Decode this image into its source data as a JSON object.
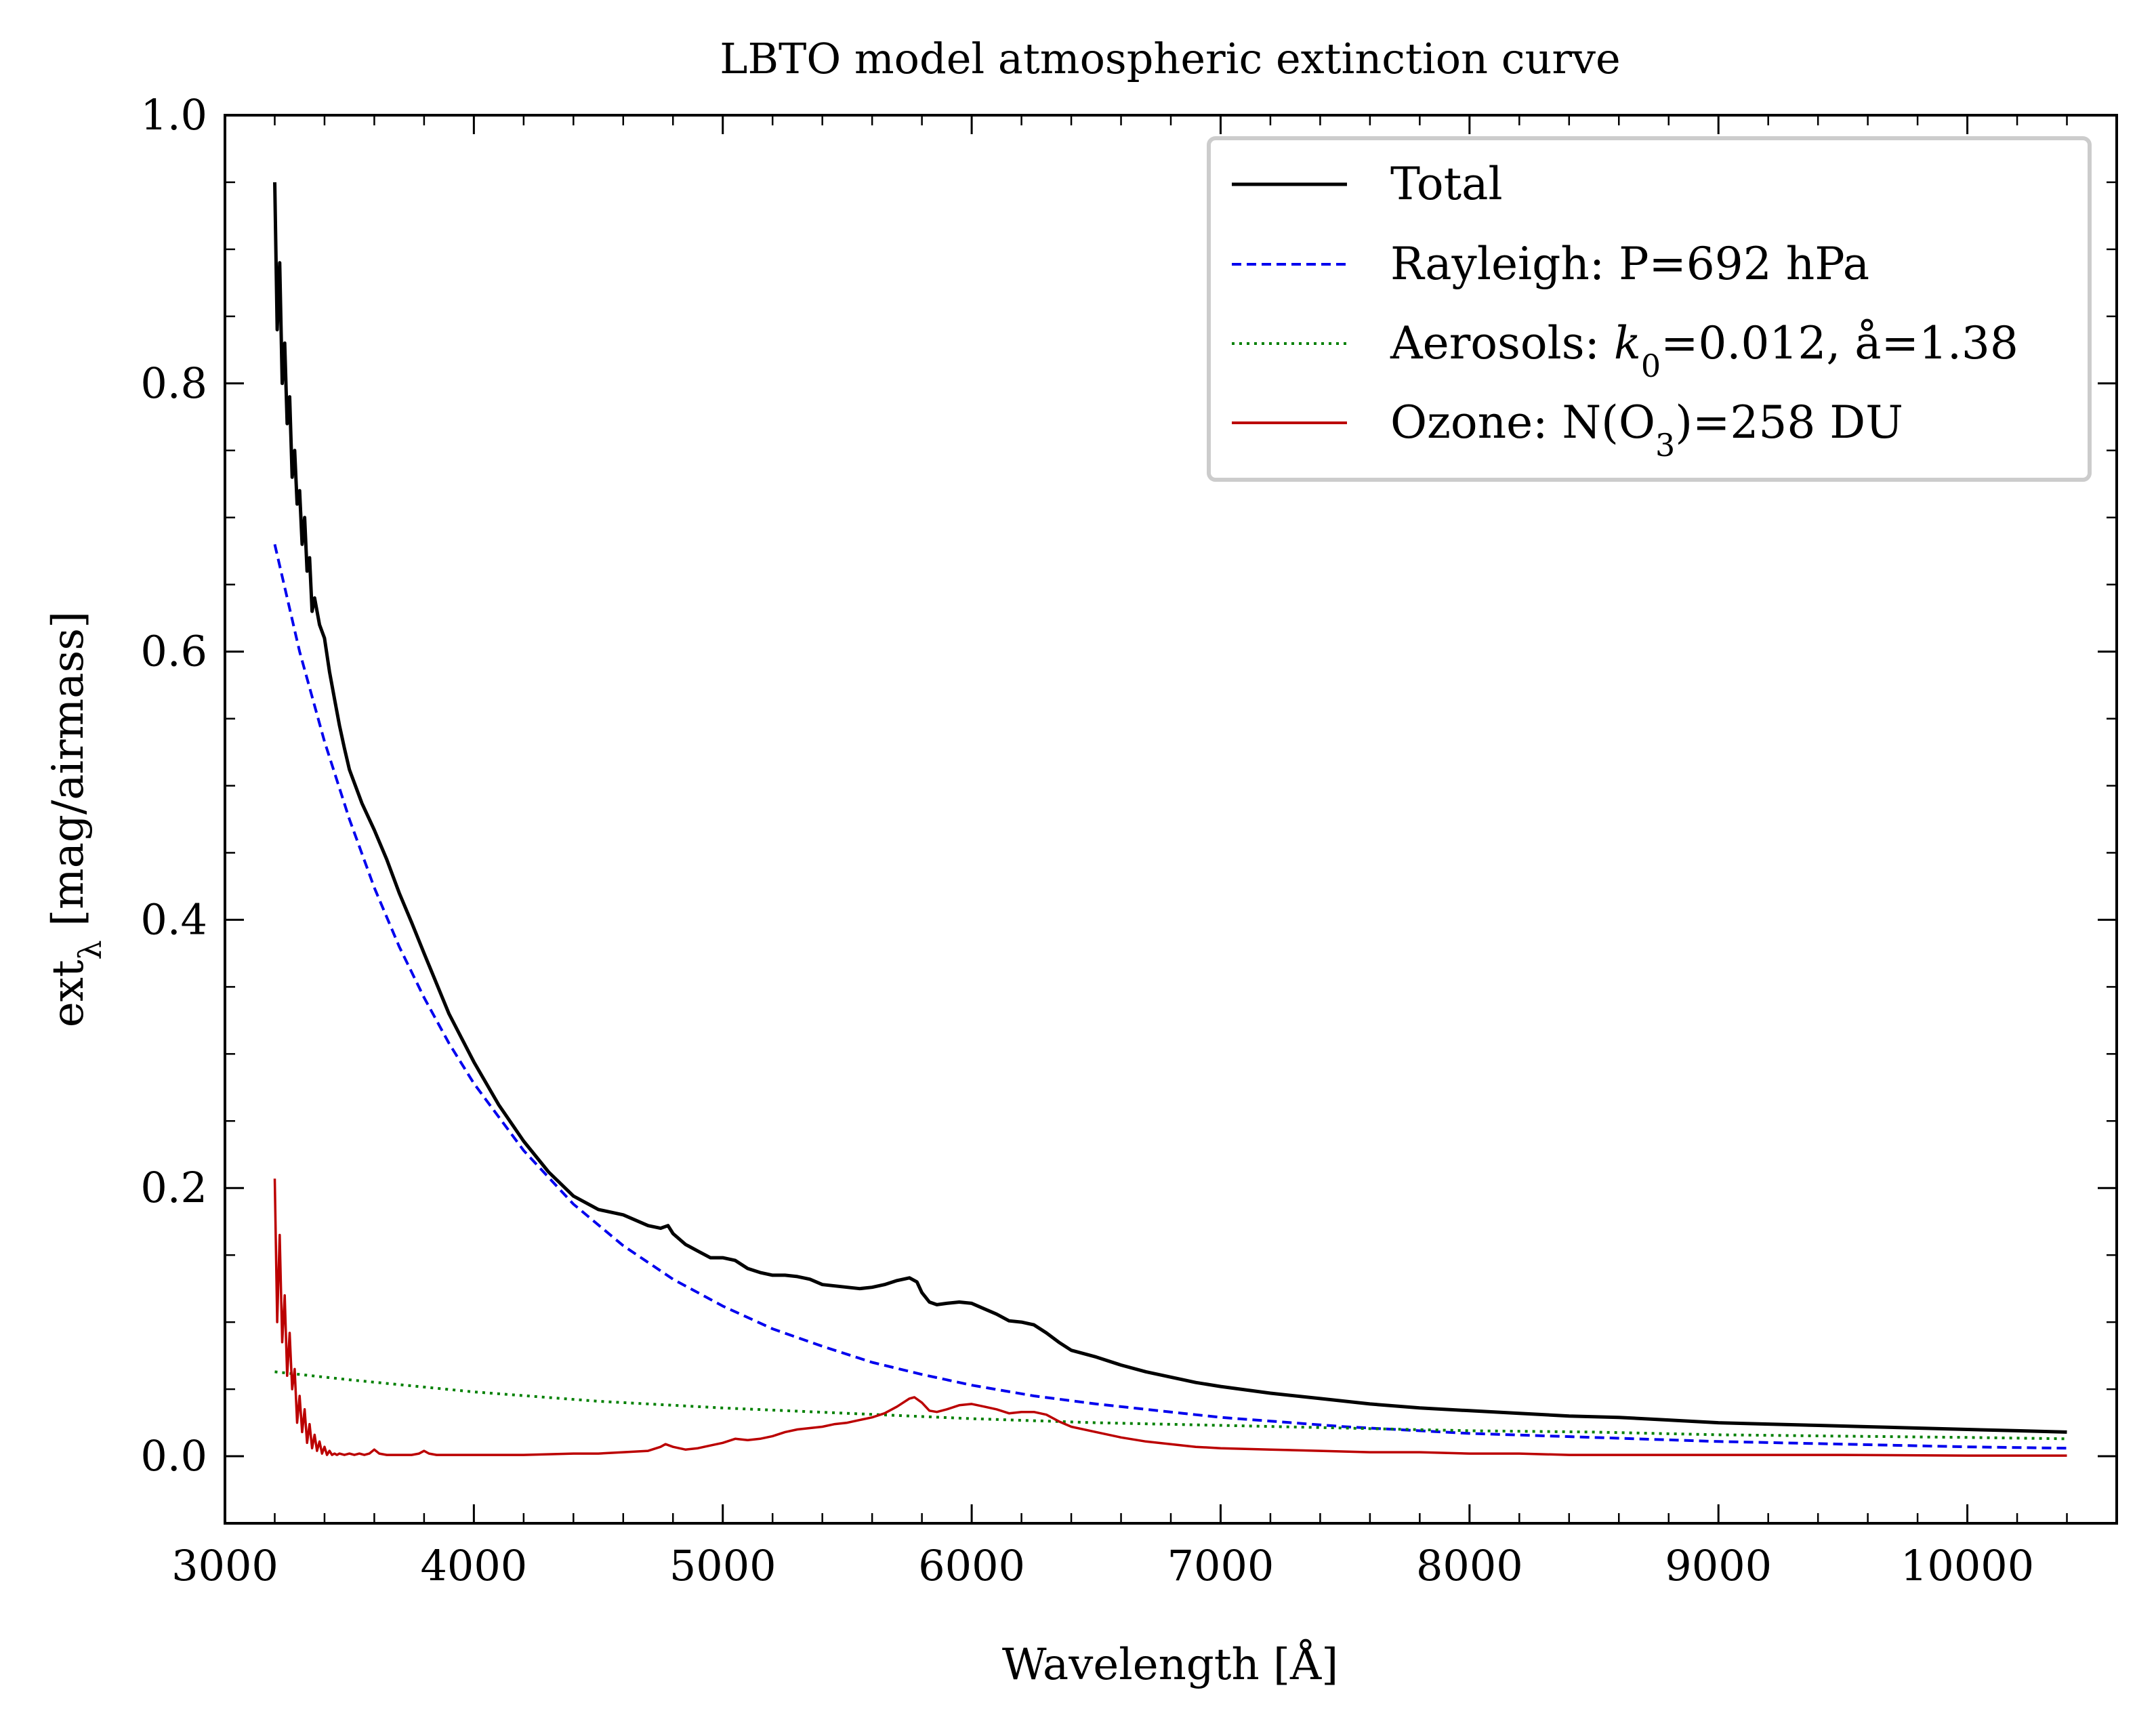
{
  "chart_data": {
    "type": "line",
    "title": "LBTO model atmospheric extinction curve",
    "xlabel": "Wavelength [Å]",
    "ylabel": "ext",
    "ylabel_sub": "λ",
    "ylabel_unit": " [mag/airmass]",
    "xlim": [
      3000,
      10600
    ],
    "ylim": [
      -0.05,
      1.0
    ],
    "xticks": [
      3000,
      4000,
      5000,
      6000,
      7000,
      8000,
      9000,
      10000
    ],
    "xtick_labels": [
      "3000",
      "4000",
      "5000",
      "6000",
      "7000",
      "8000",
      "9000",
      "10000"
    ],
    "yticks": [
      0.0,
      0.2,
      0.4,
      0.6,
      0.8,
      1.0
    ],
    "ytick_labels": [
      "0.0",
      "0.2",
      "0.4",
      "0.6",
      "0.8",
      "1.0"
    ],
    "grid": false,
    "legend_position": "top-right",
    "series": [
      {
        "key": "total",
        "name": "Total",
        "color": "#000000",
        "style": "solid",
        "x": [
          3200,
          3210,
          3220,
          3230,
          3240,
          3250,
          3260,
          3270,
          3280,
          3290,
          3300,
          3310,
          3320,
          3330,
          3340,
          3350,
          3360,
          3380,
          3400,
          3420,
          3440,
          3460,
          3480,
          3500,
          3550,
          3600,
          3650,
          3700,
          3750,
          3800,
          3900,
          4000,
          4100,
          4200,
          4300,
          4400,
          4500,
          4600,
          4700,
          4750,
          4780,
          4800,
          4850,
          4900,
          4950,
          5000,
          5050,
          5100,
          5150,
          5200,
          5250,
          5300,
          5350,
          5400,
          5450,
          5500,
          5550,
          5600,
          5650,
          5700,
          5750,
          5780,
          5800,
          5830,
          5860,
          5900,
          5950,
          6000,
          6050,
          6100,
          6150,
          6200,
          6250,
          6300,
          6350,
          6400,
          6500,
          6600,
          6700,
          6800,
          6900,
          7000,
          7200,
          7400,
          7600,
          7800,
          8000,
          8200,
          8400,
          8600,
          8800,
          9000,
          9200,
          9400,
          9600,
          9800,
          10000,
          10200,
          10400
        ],
        "y": [
          0.95,
          0.84,
          0.89,
          0.8,
          0.83,
          0.77,
          0.79,
          0.73,
          0.75,
          0.71,
          0.72,
          0.68,
          0.7,
          0.66,
          0.67,
          0.63,
          0.64,
          0.62,
          0.61,
          0.585,
          0.565,
          0.545,
          0.528,
          0.512,
          0.487,
          0.467,
          0.445,
          0.42,
          0.398,
          0.375,
          0.33,
          0.294,
          0.262,
          0.235,
          0.212,
          0.194,
          0.184,
          0.18,
          0.172,
          0.17,
          0.172,
          0.166,
          0.158,
          0.153,
          0.148,
          0.148,
          0.146,
          0.14,
          0.137,
          0.135,
          0.135,
          0.134,
          0.132,
          0.128,
          0.127,
          0.126,
          0.125,
          0.126,
          0.128,
          0.131,
          0.133,
          0.13,
          0.122,
          0.115,
          0.113,
          0.114,
          0.115,
          0.114,
          0.11,
          0.106,
          0.101,
          0.1,
          0.098,
          0.092,
          0.085,
          0.079,
          0.074,
          0.068,
          0.063,
          0.059,
          0.055,
          0.052,
          0.047,
          0.043,
          0.039,
          0.036,
          0.034,
          0.032,
          0.03,
          0.029,
          0.027,
          0.025,
          0.024,
          0.023,
          0.022,
          0.021,
          0.02,
          0.019,
          0.018
        ]
      },
      {
        "key": "rayleigh",
        "name": "Rayleigh: P=692 hPa",
        "color": "#0000ee",
        "style": "dashed",
        "x": [
          3200,
          3300,
          3400,
          3500,
          3600,
          3700,
          3800,
          3900,
          4000,
          4200,
          4400,
          4600,
          4800,
          5000,
          5200,
          5400,
          5600,
          5800,
          6000,
          6250,
          6500,
          7000,
          7500,
          8000,
          8500,
          9000,
          9500,
          10000,
          10400
        ],
        "y": [
          0.68,
          0.6,
          0.533,
          0.475,
          0.424,
          0.38,
          0.342,
          0.308,
          0.278,
          0.228,
          0.188,
          0.157,
          0.132,
          0.112,
          0.095,
          0.082,
          0.07,
          0.061,
          0.053,
          0.045,
          0.039,
          0.029,
          0.022,
          0.017,
          0.014,
          0.011,
          0.009,
          0.007,
          0.006
        ]
      },
      {
        "key": "aerosols",
        "name": "Aerosols: ",
        "name_var": "k",
        "name_sub": "0",
        "name_rest": "=0.012, å=1.38",
        "color": "#008000",
        "style": "dotted",
        "x": [
          3200,
          3500,
          4000,
          4500,
          5000,
          5500,
          6000,
          6500,
          7000,
          7500,
          8000,
          8500,
          9000,
          9500,
          10000,
          10400
        ],
        "y": [
          0.063,
          0.057,
          0.048,
          0.041,
          0.036,
          0.032,
          0.028,
          0.025,
          0.023,
          0.021,
          0.019,
          0.018,
          0.016,
          0.015,
          0.014,
          0.013
        ]
      },
      {
        "key": "ozone",
        "name": "Ozone: N(O",
        "name_sub": "3",
        "name_rest": ")=258 DU",
        "color": "#bb0000",
        "style": "solid",
        "x": [
          3200,
          3210,
          3220,
          3230,
          3240,
          3250,
          3260,
          3270,
          3280,
          3290,
          3300,
          3310,
          3320,
          3330,
          3340,
          3350,
          3360,
          3370,
          3380,
          3390,
          3400,
          3410,
          3420,
          3430,
          3440,
          3450,
          3460,
          3480,
          3500,
          3520,
          3540,
          3560,
          3580,
          3600,
          3620,
          3650,
          3700,
          3750,
          3780,
          3800,
          3820,
          3850,
          4000,
          4200,
          4400,
          4500,
          4600,
          4700,
          4750,
          4770,
          4800,
          4850,
          4900,
          4950,
          5000,
          5050,
          5100,
          5150,
          5200,
          5250,
          5300,
          5350,
          5400,
          5450,
          5500,
          5550,
          5600,
          5650,
          5700,
          5750,
          5770,
          5800,
          5830,
          5860,
          5900,
          5950,
          6000,
          6050,
          6100,
          6150,
          6200,
          6250,
          6300,
          6350,
          6400,
          6500,
          6600,
          6700,
          6800,
          6900,
          7000,
          7200,
          7400,
          7600,
          7800,
          8000,
          8200,
          8400,
          8600,
          8800,
          9000,
          9500,
          10000,
          10400
        ],
        "y": [
          0.207,
          0.1,
          0.165,
          0.085,
          0.12,
          0.06,
          0.092,
          0.05,
          0.065,
          0.025,
          0.045,
          0.018,
          0.035,
          0.01,
          0.024,
          0.006,
          0.016,
          0.004,
          0.011,
          0.002,
          0.007,
          0.001,
          0.004,
          0.001,
          0.002,
          0.001,
          0.002,
          0.001,
          0.002,
          0.001,
          0.002,
          0.001,
          0.002,
          0.005,
          0.002,
          0.001,
          0.001,
          0.001,
          0.002,
          0.004,
          0.002,
          0.001,
          0.001,
          0.001,
          0.002,
          0.002,
          0.003,
          0.004,
          0.007,
          0.009,
          0.007,
          0.005,
          0.006,
          0.008,
          0.01,
          0.013,
          0.012,
          0.013,
          0.015,
          0.018,
          0.02,
          0.021,
          0.022,
          0.024,
          0.025,
          0.027,
          0.029,
          0.032,
          0.037,
          0.043,
          0.044,
          0.04,
          0.034,
          0.033,
          0.035,
          0.038,
          0.039,
          0.037,
          0.035,
          0.032,
          0.033,
          0.033,
          0.031,
          0.026,
          0.022,
          0.018,
          0.014,
          0.011,
          0.009,
          0.007,
          0.006,
          0.005,
          0.004,
          0.003,
          0.003,
          0.002,
          0.002,
          0.001,
          0.001,
          0.001,
          0.001,
          0.001,
          0.0005,
          0.0005
        ]
      }
    ]
  }
}
